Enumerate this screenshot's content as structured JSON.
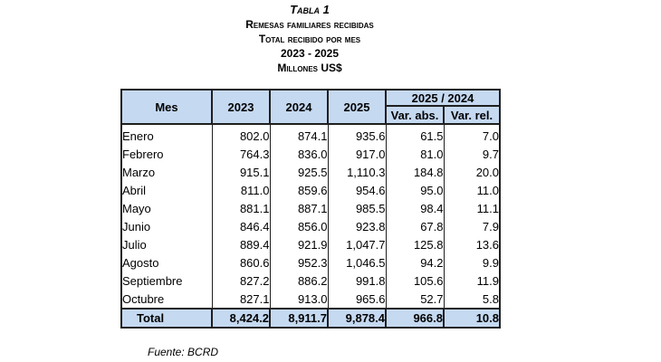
{
  "title": {
    "main": "Tabla 1",
    "line1": "Remesas familiares recibidas",
    "line2": "Total recibido por mes",
    "line3": "2023 - 2025",
    "line4": "Millones US$"
  },
  "table": {
    "headers": {
      "mes": "Mes",
      "y2023": "2023",
      "y2024": "2024",
      "y2025": "2025",
      "group": "2025 / 2024",
      "var_abs": "Var. abs.",
      "var_rel": "Var. rel."
    },
    "rows": [
      {
        "mes": "Enero",
        "y2023": "802.0",
        "y2024": "874.1",
        "y2025": "935.6",
        "var_abs": "61.5",
        "var_rel": "7.0"
      },
      {
        "mes": "Febrero",
        "y2023": "764.3",
        "y2024": "836.0",
        "y2025": "917.0",
        "var_abs": "81.0",
        "var_rel": "9.7"
      },
      {
        "mes": "Marzo",
        "y2023": "915.1",
        "y2024": "925.5",
        "y2025": "1,110.3",
        "var_abs": "184.8",
        "var_rel": "20.0"
      },
      {
        "mes": "Abril",
        "y2023": "811.0",
        "y2024": "859.6",
        "y2025": "954.6",
        "var_abs": "95.0",
        "var_rel": "11.0"
      },
      {
        "mes": "Mayo",
        "y2023": "881.1",
        "y2024": "887.1",
        "y2025": "985.5",
        "var_abs": "98.4",
        "var_rel": "11.1"
      },
      {
        "mes": "Junio",
        "y2023": "846.4",
        "y2024": "856.0",
        "y2025": "923.8",
        "var_abs": "67.8",
        "var_rel": "7.9"
      },
      {
        "mes": "Julio",
        "y2023": "889.4",
        "y2024": "921.9",
        "y2025": "1,047.7",
        "var_abs": "125.8",
        "var_rel": "13.6"
      },
      {
        "mes": "Agosto",
        "y2023": "860.6",
        "y2024": "952.3",
        "y2025": "1,046.5",
        "var_abs": "94.2",
        "var_rel": "9.9"
      },
      {
        "mes": "Septiembre",
        "y2023": "827.2",
        "y2024": "886.2",
        "y2025": "991.8",
        "var_abs": "105.6",
        "var_rel": "11.9"
      },
      {
        "mes": "Octubre",
        "y2023": "827.1",
        "y2024": "913.0",
        "y2025": "965.6",
        "var_abs": "52.7",
        "var_rel": "5.8"
      }
    ],
    "total": {
      "mes": "Total",
      "y2023": "8,424.2",
      "y2024": "8,911.7",
      "y2025": "9,878.4",
      "var_abs": "966.8",
      "var_rel": "10.8"
    }
  },
  "source": "Fuente: BCRD"
}
